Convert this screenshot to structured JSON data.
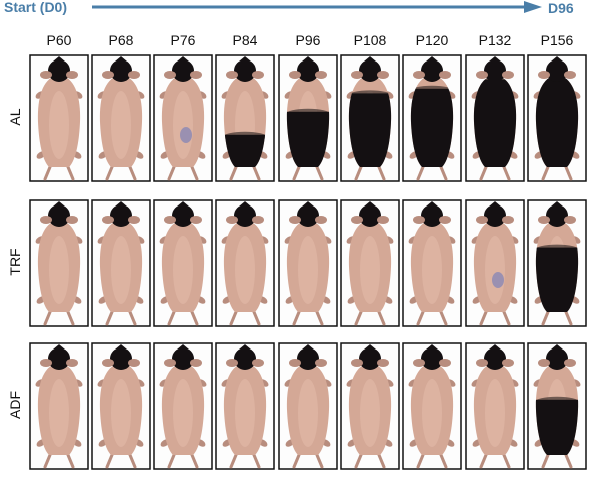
{
  "timeline": {
    "start_label": "Start (D0)",
    "end_label": "D96",
    "arrow_color": "#4a7ea8"
  },
  "columns": [
    "P60",
    "P68",
    "P76",
    "P84",
    "P96",
    "P108",
    "P120",
    "P132",
    "P156"
  ],
  "rows": [
    {
      "label": "AL",
      "dark_fur_coverage": [
        0.0,
        0.0,
        0.05,
        0.35,
        0.6,
        0.8,
        0.85,
        0.95,
        1.0
      ]
    },
    {
      "label": "TRF",
      "dark_fur_coverage": [
        0.0,
        0.0,
        0.0,
        0.0,
        0.0,
        0.0,
        0.0,
        0.05,
        0.7
      ]
    },
    {
      "label": "ADF",
      "dark_fur_coverage": [
        0.0,
        0.0,
        0.0,
        0.0,
        0.0,
        0.0,
        0.0,
        0.0,
        0.6
      ]
    }
  ],
  "colors": {
    "skin": "#d4a896",
    "skin_shade": "#b88d7e",
    "fur_dark": "#141012",
    "bruise": "#7d82b8",
    "panel_border": "#111111"
  }
}
